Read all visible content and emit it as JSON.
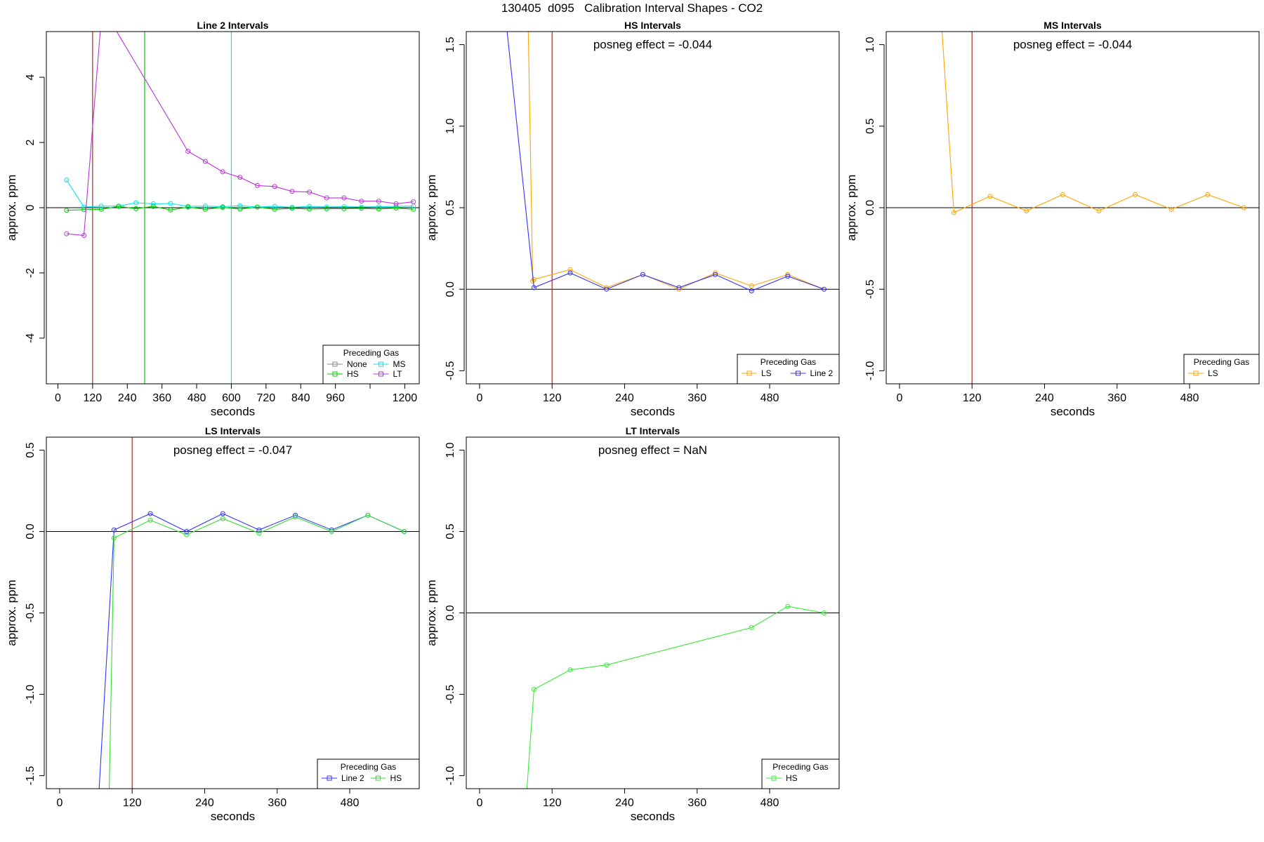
{
  "main_title": "130405  d095   Calibration Interval Shapes - CO2",
  "chart_data": [
    {
      "type": "line",
      "title": "Line 2 Intervals",
      "xlabel": "seconds",
      "ylabel": "approx. ppm",
      "annotation": "",
      "xlim": [
        -40,
        1250
      ],
      "ylim": [
        -5.4,
        5.4
      ],
      "xticks": [
        0,
        120,
        240,
        360,
        480,
        600,
        720,
        840,
        960,
        1200
      ],
      "xticklabels": [
        "0",
        "120",
        "240",
        "360",
        "480",
        "600",
        "720",
        "840",
        "960",
        "1200"
      ],
      "extra_xticks": [
        1080
      ],
      "yticks": [
        -4,
        -2,
        0,
        2,
        4
      ],
      "yticklabels": [
        "-4",
        "-2",
        "0",
        "2",
        "4"
      ],
      "vlines": [
        {
          "x": 120,
          "color": "#a52a2a"
        },
        {
          "x": 300,
          "color": "#00cc00"
        },
        {
          "x": 600,
          "color": "#00e5ee"
        }
      ],
      "legend": {
        "title": "Preceding Gas",
        "position": "bottom-right",
        "columns": 2,
        "entries": [
          "None",
          "MS",
          "HS",
          "LT"
        ]
      },
      "series": [
        {
          "name": "None",
          "color": "#888888",
          "x": [],
          "y": []
        },
        {
          "name": "MS",
          "color": "#00e5ee",
          "x": [
            30,
            90,
            150,
            210,
            270,
            330,
            390,
            450,
            510,
            570,
            630,
            690,
            750,
            810,
            870,
            930,
            990,
            1050,
            1110,
            1170,
            1230
          ],
          "y": [
            0.85,
            0.02,
            0.05,
            0.05,
            0.15,
            0.12,
            0.13,
            0.04,
            0.05,
            0.03,
            0.06,
            0.02,
            0.04,
            0.01,
            0.04,
            0.02,
            0.03,
            0.02,
            0.03,
            0.04,
            0.05
          ]
        },
        {
          "name": "HS",
          "color": "#00cc00",
          "x": [
            30,
            90,
            150,
            210,
            270,
            330,
            390,
            450,
            510,
            570,
            630,
            690,
            750,
            810,
            870,
            930,
            990,
            1050,
            1110,
            1170,
            1230
          ],
          "y": [
            -0.08,
            -0.06,
            -0.05,
            0.04,
            -0.03,
            0.04,
            -0.07,
            0.02,
            -0.05,
            0.01,
            -0.04,
            0.02,
            -0.05,
            -0.02,
            -0.04,
            -0.03,
            -0.03,
            -0.02,
            -0.04,
            -0.01,
            -0.05
          ]
        },
        {
          "name": "LT",
          "color": "#bb33dd",
          "x": [
            30,
            90,
            150,
            190,
            450,
            510,
            570,
            630,
            690,
            750,
            810,
            870,
            930,
            990,
            1050,
            1110,
            1170,
            1230
          ],
          "y": [
            -0.8,
            -0.85,
            5.8,
            5.6,
            1.73,
            1.42,
            1.1,
            0.93,
            0.68,
            0.65,
            0.5,
            0.48,
            0.3,
            0.3,
            0.2,
            0.2,
            0.12,
            0.18
          ]
        }
      ]
    },
    {
      "type": "line",
      "title": "HS Intervals",
      "xlabel": "seconds",
      "ylabel": "approx. ppm",
      "annotation": "posneg effect = -0.044",
      "xlim": [
        -22,
        595
      ],
      "ylim": [
        -0.58,
        1.58
      ],
      "xticks": [
        0,
        120,
        240,
        360,
        480
      ],
      "xticklabels": [
        "0",
        "120",
        "240",
        "360",
        "480"
      ],
      "extra_xticks": [],
      "yticks": [
        -0.5,
        0.0,
        0.5,
        1.0,
        1.5
      ],
      "yticklabels": [
        "-0.5",
        "0.0",
        "0.5",
        "1.0",
        "1.5"
      ],
      "vlines": [
        {
          "x": 120,
          "color": "#a52a2a"
        }
      ],
      "legend": {
        "title": "Preceding Gas",
        "position": "bottom-right",
        "columns": 2,
        "entries": [
          "LS",
          "Line 2"
        ]
      },
      "series": [
        {
          "name": "LS",
          "color": "#ffa500",
          "x": [
            80,
            88,
            90,
            150,
            210,
            270,
            330,
            390,
            450,
            510,
            570
          ],
          "y": [
            1.7,
            0.05,
            0.06,
            0.12,
            0.01,
            0.09,
            0.0,
            0.1,
            0.02,
            0.09,
            0.0
          ]
        },
        {
          "name": "Line 2",
          "color": "#3333ff",
          "x": [
            45,
            90,
            150,
            210,
            270,
            330,
            390,
            450,
            510,
            570
          ],
          "y": [
            1.6,
            0.01,
            0.1,
            0.0,
            0.09,
            0.01,
            0.09,
            -0.01,
            0.08,
            0.0
          ]
        }
      ]
    },
    {
      "type": "line",
      "title": "MS Intervals",
      "xlabel": "seconds",
      "ylabel": "approx. ppm",
      "annotation": "posneg effect = -0.044",
      "xlim": [
        -22,
        595
      ],
      "ylim": [
        -1.08,
        1.08
      ],
      "xticks": [
        0,
        120,
        240,
        360,
        480
      ],
      "xticklabels": [
        "0",
        "120",
        "240",
        "360",
        "480"
      ],
      "extra_xticks": [],
      "yticks": [
        -1.0,
        -0.5,
        0.0,
        0.5,
        1.0
      ],
      "yticklabels": [
        "-1.0",
        "-0.5",
        "0.0",
        "0.5",
        "1.0"
      ],
      "vlines": [
        {
          "x": 120,
          "color": "#a52a2a"
        }
      ],
      "legend": {
        "title": "Preceding Gas",
        "position": "bottom-right",
        "columns": 1,
        "entries": [
          "LS"
        ]
      },
      "series": [
        {
          "name": "LS",
          "color": "#ffa500",
          "x": [
            70,
            90,
            150,
            210,
            270,
            330,
            390,
            450,
            510,
            570
          ],
          "y": [
            1.1,
            -0.03,
            0.07,
            -0.02,
            0.08,
            -0.02,
            0.08,
            -0.01,
            0.08,
            0.0
          ]
        }
      ]
    },
    {
      "type": "line",
      "title": "LS Intervals",
      "xlabel": "seconds",
      "ylabel": "approx. ppm",
      "annotation": "posneg effect = -0.047",
      "xlim": [
        -22,
        595
      ],
      "ylim": [
        -1.58,
        0.58
      ],
      "xticks": [
        0,
        120,
        240,
        360,
        480
      ],
      "xticklabels": [
        "0",
        "120",
        "240",
        "360",
        "480"
      ],
      "extra_xticks": [],
      "yticks": [
        -1.5,
        -1.0,
        -0.5,
        0.0,
        0.5
      ],
      "yticklabels": [
        "-1.5",
        "-1.0",
        "-0.5",
        "0.0",
        "0.5"
      ],
      "vlines": [
        {
          "x": 120,
          "color": "#a52a2a"
        }
      ],
      "legend": {
        "title": "Preceding Gas",
        "position": "bottom-right",
        "columns": 2,
        "entries": [
          "Line 2",
          "HS"
        ]
      },
      "series": [
        {
          "name": "Line 2",
          "color": "#3333ff",
          "x": [
            65,
            90,
            150,
            210,
            270,
            330,
            390,
            450,
            510,
            570
          ],
          "y": [
            -1.6,
            0.01,
            0.11,
            0.0,
            0.11,
            0.01,
            0.1,
            0.01,
            0.1,
            0.0
          ]
        },
        {
          "name": "HS",
          "color": "#33dd33",
          "x": [
            82,
            90,
            150,
            210,
            270,
            330,
            390,
            450,
            510,
            570
          ],
          "y": [
            -1.6,
            -0.04,
            0.07,
            -0.02,
            0.08,
            -0.01,
            0.09,
            0.0,
            0.1,
            0.0
          ]
        }
      ]
    },
    {
      "type": "line",
      "title": "LT Intervals",
      "xlabel": "seconds",
      "ylabel": "approx. ppm",
      "annotation": "posneg effect = NaN",
      "xlim": [
        -22,
        595
      ],
      "ylim": [
        -1.08,
        1.08
      ],
      "xticks": [
        0,
        120,
        240,
        360,
        480
      ],
      "xticklabels": [
        "0",
        "120",
        "240",
        "360",
        "480"
      ],
      "extra_xticks": [],
      "yticks": [
        -1.0,
        -0.5,
        0.0,
        0.5,
        1.0
      ],
      "yticklabels": [
        "-1.0",
        "-0.5",
        "0.0",
        "0.5",
        "1.0"
      ],
      "vlines": [],
      "legend": {
        "title": "Preceding Gas",
        "position": "bottom-right",
        "columns": 1,
        "entries": [
          "HS"
        ]
      },
      "series": [
        {
          "name": "HS",
          "color": "#33ee33",
          "x": [
            78,
            90,
            150,
            210,
            450,
            510,
            570
          ],
          "y": [
            -1.1,
            -0.47,
            -0.35,
            -0.32,
            -0.09,
            0.04,
            0.0
          ]
        }
      ]
    }
  ]
}
